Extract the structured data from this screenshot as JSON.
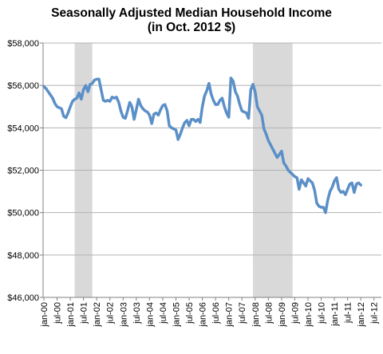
{
  "chart_data": {
    "type": "line",
    "title_line1": "Seasonally Adjusted Median Household Income",
    "title_line2": "(in Oct. 2012 $)",
    "xlabel": "",
    "ylabel": "",
    "ylim": [
      46000,
      58000
    ],
    "y_ticks": [
      46000,
      48000,
      50000,
      52000,
      54000,
      56000,
      58000
    ],
    "y_tick_labels": [
      "$46,000",
      "$48,000",
      "$50,000",
      "$52,000",
      "$54,000",
      "$56,000",
      "$58,000"
    ],
    "x_tick_labels": [
      "jan-00",
      "jul-00",
      "jan-01",
      "jul-01",
      "jan-02",
      "jul-02",
      "jan-03",
      "jul-03",
      "jan-04",
      "jul-04",
      "jan-05",
      "jul-05",
      "jan-06",
      "jul-06",
      "jan-07",
      "jul-07",
      "jan-08",
      "jul-08",
      "jan-09",
      "jul-09",
      "jan-10",
      "jul-10",
      "jan-11",
      "jul-11",
      "jan-12",
      "jul-12"
    ],
    "x_start": "jan-00",
    "x_end": "oct-12",
    "grid": true,
    "legend": "none",
    "line_color": "#5b8fc7",
    "shade_color": "#d9d9d9",
    "recessions": [
      {
        "start": "mar-01",
        "end": "nov-01"
      },
      {
        "start": "dec-07",
        "end": "jun-09"
      }
    ],
    "series": [
      {
        "values": [
          55950,
          55850,
          55700,
          55550,
          55400,
          55150,
          55000,
          54950,
          54900,
          54550,
          54480,
          54700,
          55000,
          55250,
          55350,
          55400,
          55650,
          55350,
          55800,
          56000,
          55700,
          56050,
          56100,
          56250,
          56300,
          56300,
          55800,
          55300,
          55250,
          55300,
          55250,
          55450,
          55400,
          55450,
          55200,
          54800,
          54500,
          54450,
          54800,
          55200,
          55000,
          54400,
          54850,
          55350,
          55050,
          54900,
          54800,
          54750,
          54600,
          54200,
          54650,
          54700,
          54600,
          54850,
          55050,
          55100,
          54800,
          54100,
          54000,
          53950,
          53900,
          53450,
          53700,
          54000,
          54250,
          54350,
          54100,
          54400,
          54400,
          54300,
          54400,
          54250,
          55000,
          55500,
          55750,
          56100,
          55600,
          55300,
          55100,
          55100,
          55300,
          55400,
          55000,
          54700,
          54500,
          56350,
          56200,
          55700,
          55500,
          55100,
          54800,
          54750,
          54700,
          54450,
          55800,
          56050,
          55700,
          55000,
          54800,
          54600,
          53950,
          53700,
          53400,
          53200,
          53000,
          52800,
          52600,
          52750,
          52900,
          52350,
          52200,
          52000,
          51900,
          51800,
          51700,
          51650,
          51100,
          51550,
          51400,
          51250,
          51600,
          51500,
          51400,
          51050,
          50450,
          50300,
          50250,
          50250,
          50000,
          50600,
          51000,
          51200,
          51500,
          51650,
          51100,
          50950,
          51000,
          50850,
          51100,
          51350,
          51400,
          50950,
          51350,
          51400,
          51300
        ]
      }
    ]
  }
}
